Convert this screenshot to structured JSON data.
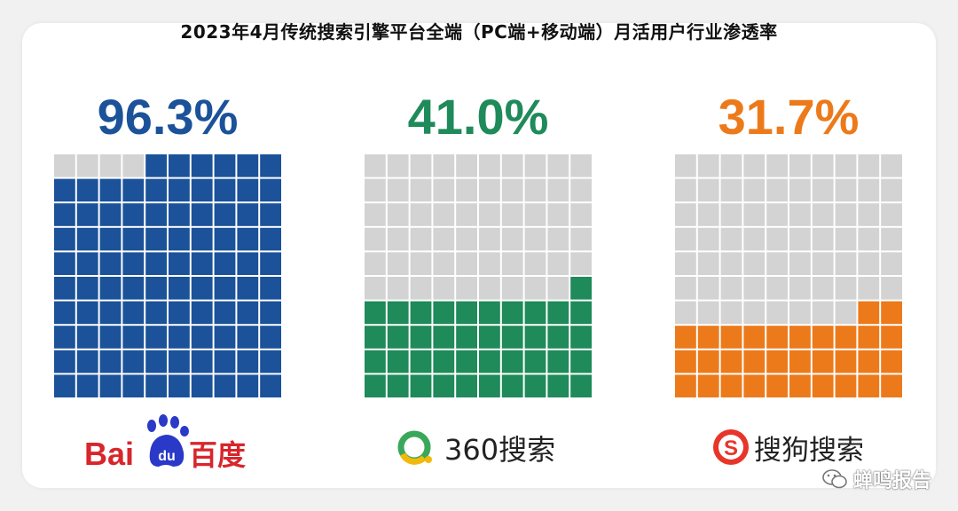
{
  "title": "2023年4月传统搜索引擎平台全端（PC端+移动端）月活用户行业渗透率",
  "colors": {
    "empty": "#d3d3d3",
    "baidu": "#1b5299",
    "q360": "#1f8a5a",
    "sogou": "#ec7a1b"
  },
  "chart_data": {
    "type": "waffle",
    "grid": {
      "columns": 10,
      "rows": 10
    },
    "series": [
      {
        "name": "百度",
        "value": 96.3,
        "label": "96.3%",
        "color": "#1b5299"
      },
      {
        "name": "360搜索",
        "value": 41.0,
        "label": "41.0%",
        "color": "#1f8a5a"
      },
      {
        "name": "搜狗搜索",
        "value": 31.7,
        "label": "31.7%",
        "color": "#ec7a1b"
      }
    ]
  },
  "logos": {
    "baidu": {
      "latin": "Bai",
      "du": "du",
      "cn": "百度"
    },
    "q360": {
      "text": "360搜索"
    },
    "sogou": {
      "text": "搜狗搜索"
    }
  },
  "watermark": "蝉鸣报告"
}
